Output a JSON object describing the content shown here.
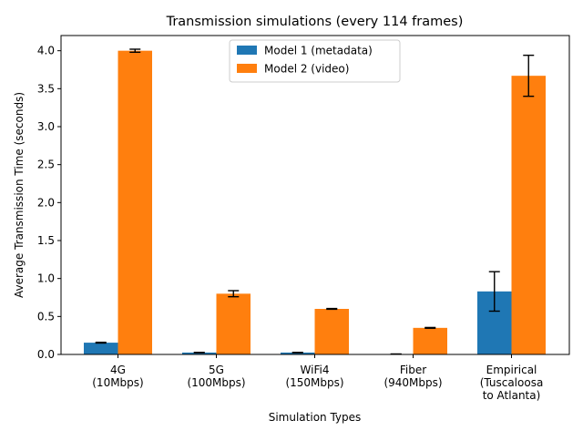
{
  "chart_data": {
    "type": "bar",
    "title": "Transmission simulations (every 114 frames)",
    "xlabel": "Simulation Types",
    "ylabel": "Average Transmission Time (seconds)",
    "ylim": [
      0,
      4.2
    ],
    "yticks": [
      0.0,
      0.5,
      1.0,
      1.5,
      2.0,
      2.5,
      3.0,
      3.5,
      4.0
    ],
    "ytick_labels": [
      "0.0",
      "0.5",
      "1.0",
      "1.5",
      "2.0",
      "2.5",
      "3.0",
      "3.5",
      "4.0"
    ],
    "categories": [
      [
        "4G",
        "(10Mbps)"
      ],
      [
        "5G",
        "(100Mbps)"
      ],
      [
        "WiFi4",
        "(150Mbps)"
      ],
      [
        "Fiber",
        "(940Mbps)"
      ],
      [
        "Empirical",
        "(Tuscaloosa",
        "to Atlanta)"
      ]
    ],
    "series": [
      {
        "name": "Model 1 (metadata)",
        "color": "#1f77b4",
        "values": [
          0.155,
          0.025,
          0.025,
          0.005,
          0.83
        ],
        "errors": [
          0.005,
          0.002,
          0.002,
          0.001,
          0.26
        ]
      },
      {
        "name": "Model 2 (video)",
        "color": "#ff7f0e",
        "values": [
          4.0,
          0.8,
          0.6,
          0.35,
          3.67
        ],
        "errors": [
          0.02,
          0.04,
          0.005,
          0.005,
          0.27
        ]
      }
    ],
    "grid": false,
    "legend_position": "top-center"
  }
}
